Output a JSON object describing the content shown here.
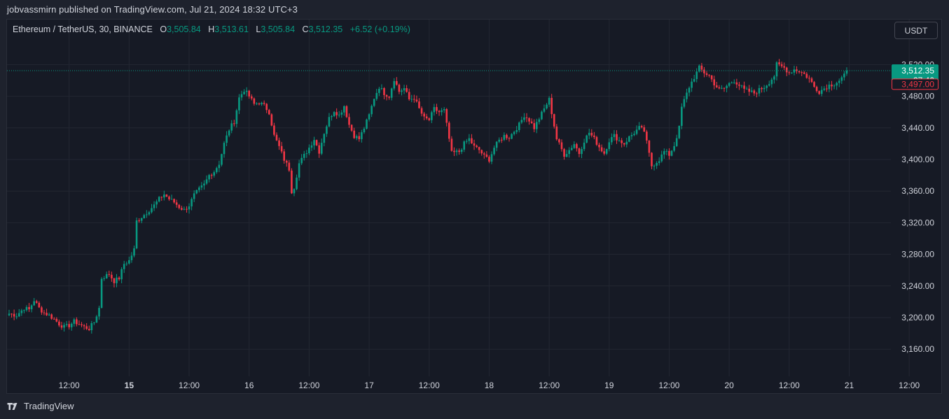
{
  "header": {
    "publisher_line": "jobvassmirn published on TradingView.com, Jul 21, 2024 18:32 UTC+3"
  },
  "legend": {
    "symbol": "Ethereum / TetherUS, 30, BINANCE",
    "open_label": "O",
    "open": "3,505.84",
    "high_label": "H",
    "high": "3,513.61",
    "low_label": "L",
    "low": "3,505.84",
    "close_label": "C",
    "close": "3,512.35",
    "change": "+6.52 (+0.19%)"
  },
  "currency_button": "USDT",
  "footer": {
    "brand": "TradingView",
    "logo": "tradingview-logo-icon"
  },
  "colors": {
    "up": "#089981",
    "down": "#f23645",
    "grid": "#232732",
    "bg": "#161a25",
    "text": "#d1d4dc"
  },
  "price_labels": {
    "last_price": "3,512.35",
    "countdown": "27:40",
    "marked_price": "3,497.00"
  },
  "chart_data": {
    "type": "candlestick",
    "interval": "30",
    "y_ticks": [
      3160,
      3200,
      3240,
      3280,
      3320,
      3360,
      3400,
      3440,
      3480,
      3520
    ],
    "y_tick_labels": [
      "3,160.00",
      "3,200.00",
      "3,240.00",
      "3,280.00",
      "3,320.00",
      "3,360.00",
      "3,400.00",
      "3,440.00",
      "3,480.00",
      "3,520.00"
    ],
    "x_ticks": [
      {
        "label": "12:00",
        "bold": false,
        "t": 24
      },
      {
        "label": "15",
        "bold": true,
        "t": 48
      },
      {
        "label": "12:00",
        "bold": false,
        "t": 72
      },
      {
        "label": "16",
        "bold": false,
        "t": 96
      },
      {
        "label": "12:00",
        "bold": false,
        "t": 120
      },
      {
        "label": "17",
        "bold": false,
        "t": 144
      },
      {
        "label": "12:00",
        "bold": false,
        "t": 168
      },
      {
        "label": "18",
        "bold": false,
        "t": 192
      },
      {
        "label": "12:00",
        "bold": false,
        "t": 216
      },
      {
        "label": "19",
        "bold": false,
        "t": 240
      },
      {
        "label": "12:00",
        "bold": false,
        "t": 264
      },
      {
        "label": "20",
        "bold": false,
        "t": 288
      },
      {
        "label": "12:00",
        "bold": false,
        "t": 312
      },
      {
        "label": "21",
        "bold": false,
        "t": 336
      },
      {
        "label": "12:00",
        "bold": false,
        "t": 360
      }
    ],
    "last_price": 3512.35,
    "marked_price": 3497.0,
    "close_path": [
      [
        0,
        3205
      ],
      [
        3,
        3203
      ],
      [
        6,
        3212
      ],
      [
        8,
        3210
      ],
      [
        10,
        3222
      ],
      [
        12,
        3212
      ],
      [
        14,
        3206
      ],
      [
        16,
        3203
      ],
      [
        18,
        3198
      ],
      [
        20,
        3192
      ],
      [
        22,
        3188
      ],
      [
        24,
        3190
      ],
      [
        26,
        3195
      ],
      [
        28,
        3192
      ],
      [
        30,
        3188
      ],
      [
        32,
        3186
      ],
      [
        34,
        3194
      ],
      [
        36,
        3212
      ],
      [
        37,
        3250
      ],
      [
        40,
        3255
      ],
      [
        42,
        3246
      ],
      [
        44,
        3250
      ],
      [
        46,
        3268
      ],
      [
        48,
        3272
      ],
      [
        50,
        3286
      ],
      [
        51,
        3322
      ],
      [
        54,
        3330
      ],
      [
        56,
        3336
      ],
      [
        58,
        3342
      ],
      [
        60,
        3350
      ],
      [
        62,
        3356
      ],
      [
        64,
        3350
      ],
      [
        66,
        3346
      ],
      [
        68,
        3340
      ],
      [
        70,
        3336
      ],
      [
        72,
        3342
      ],
      [
        74,
        3355
      ],
      [
        76,
        3362
      ],
      [
        78,
        3368
      ],
      [
        80,
        3380
      ],
      [
        82,
        3385
      ],
      [
        84,
        3395
      ],
      [
        86,
        3420
      ],
      [
        88,
        3438
      ],
      [
        90,
        3448
      ],
      [
        92,
        3478
      ],
      [
        94,
        3488
      ],
      [
        96,
        3480
      ],
      [
        98,
        3470
      ],
      [
        100,
        3472
      ],
      [
        102,
        3468
      ],
      [
        104,
        3460
      ],
      [
        106,
        3430
      ],
      [
        108,
        3416
      ],
      [
        110,
        3400
      ],
      [
        112,
        3388
      ],
      [
        113,
        3360
      ],
      [
        114,
        3365
      ],
      [
        116,
        3395
      ],
      [
        118,
        3405
      ],
      [
        120,
        3415
      ],
      [
        122,
        3426
      ],
      [
        124,
        3410
      ],
      [
        126,
        3434
      ],
      [
        128,
        3452
      ],
      [
        130,
        3462
      ],
      [
        132,
        3456
      ],
      [
        134,
        3468
      ],
      [
        136,
        3444
      ],
      [
        138,
        3430
      ],
      [
        140,
        3426
      ],
      [
        142,
        3440
      ],
      [
        144,
        3456
      ],
      [
        146,
        3478
      ],
      [
        148,
        3492
      ],
      [
        150,
        3484
      ],
      [
        152,
        3480
      ],
      [
        154,
        3502
      ],
      [
        156,
        3486
      ],
      [
        158,
        3490
      ],
      [
        160,
        3476
      ],
      [
        162,
        3478
      ],
      [
        164,
        3464
      ],
      [
        166,
        3452
      ],
      [
        168,
        3450
      ],
      [
        170,
        3464
      ],
      [
        172,
        3460
      ],
      [
        174,
        3462
      ],
      [
        177,
        3408
      ],
      [
        180,
        3410
      ],
      [
        182,
        3420
      ],
      [
        184,
        3426
      ],
      [
        186,
        3416
      ],
      [
        188,
        3412
      ],
      [
        190,
        3404
      ],
      [
        192,
        3400
      ],
      [
        194,
        3415
      ],
      [
        196,
        3424
      ],
      [
        198,
        3430
      ],
      [
        200,
        3428
      ],
      [
        202,
        3436
      ],
      [
        204,
        3444
      ],
      [
        206,
        3456
      ],
      [
        208,
        3450
      ],
      [
        210,
        3440
      ],
      [
        212,
        3452
      ],
      [
        214,
        3464
      ],
      [
        216,
        3476
      ],
      [
        219,
        3426
      ],
      [
        222,
        3406
      ],
      [
        224,
        3412
      ],
      [
        226,
        3420
      ],
      [
        228,
        3408
      ],
      [
        230,
        3424
      ],
      [
        232,
        3434
      ],
      [
        234,
        3426
      ],
      [
        236,
        3416
      ],
      [
        238,
        3408
      ],
      [
        240,
        3424
      ],
      [
        242,
        3430
      ],
      [
        244,
        3424
      ],
      [
        246,
        3420
      ],
      [
        248,
        3428
      ],
      [
        250,
        3434
      ],
      [
        252,
        3440
      ],
      [
        254,
        3436
      ],
      [
        257,
        3392
      ],
      [
        260,
        3400
      ],
      [
        262,
        3410
      ],
      [
        264,
        3406
      ],
      [
        266,
        3418
      ],
      [
        268,
        3440
      ],
      [
        269,
        3466
      ],
      [
        272,
        3492
      ],
      [
        274,
        3504
      ],
      [
        276,
        3516
      ],
      [
        278,
        3510
      ],
      [
        280,
        3506
      ],
      [
        282,
        3496
      ],
      [
        284,
        3488
      ],
      [
        286,
        3490
      ],
      [
        288,
        3496
      ],
      [
        290,
        3500
      ],
      [
        292,
        3494
      ],
      [
        294,
        3488
      ],
      [
        296,
        3486
      ],
      [
        298,
        3484
      ],
      [
        300,
        3488
      ],
      [
        302,
        3492
      ],
      [
        304,
        3498
      ],
      [
        306,
        3506
      ],
      [
        307,
        3520
      ],
      [
        310,
        3516
      ],
      [
        312,
        3510
      ],
      [
        314,
        3514
      ],
      [
        316,
        3512
      ],
      [
        318,
        3508
      ],
      [
        320,
        3502
      ],
      [
        322,
        3492
      ],
      [
        324,
        3486
      ],
      [
        326,
        3490
      ],
      [
        328,
        3494
      ],
      [
        330,
        3496
      ],
      [
        332,
        3500
      ],
      [
        334,
        3505.84
      ],
      [
        335,
        3512.35
      ]
    ]
  }
}
